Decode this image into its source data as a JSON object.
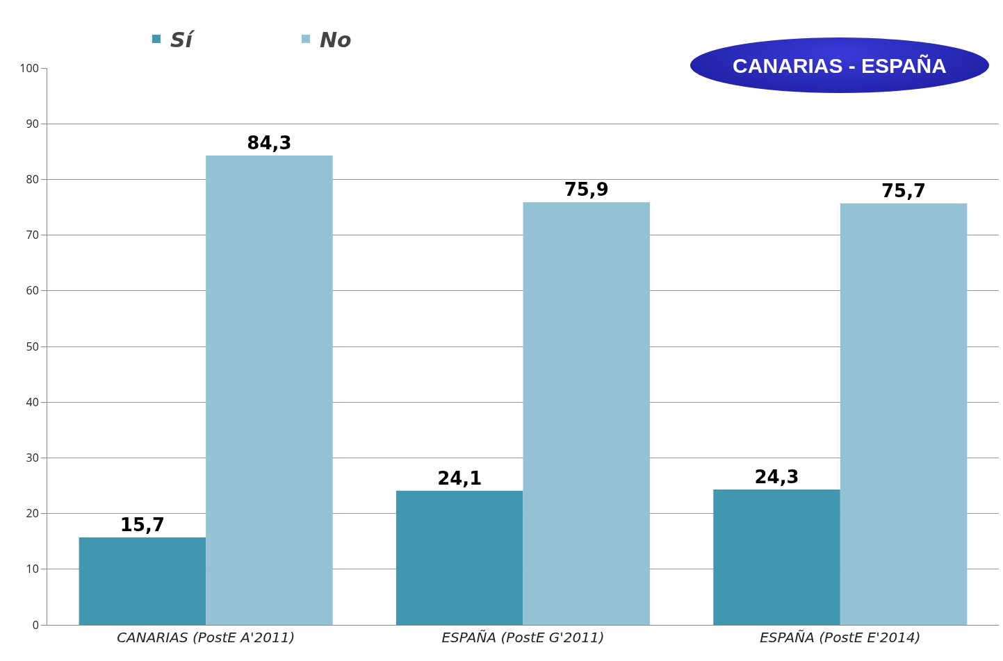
{
  "chart_data": {
    "type": "bar",
    "title": "CANARIAS - ESPAÑA",
    "categories": [
      "CANARIAS (PostE A'2011)",
      "ESPAÑA (PostE G'2011)",
      "ESPAÑA (PostE E'2014)"
    ],
    "series": [
      {
        "name": "Sí",
        "color": "#4297b0",
        "values": [
          15.7,
          24.1,
          24.3
        ],
        "value_labels": [
          "15,7",
          "24,1",
          "24,3"
        ]
      },
      {
        "name": "No",
        "color": "#92c2d4",
        "values": [
          84.3,
          75.9,
          75.7
        ],
        "value_labels": [
          "84,3",
          "75,9",
          "75,7"
        ]
      }
    ],
    "ylim": [
      0,
      100
    ],
    "yticks": [
      0,
      10,
      20,
      30,
      40,
      50,
      60,
      70,
      80,
      90,
      100
    ],
    "grid": "y",
    "legend": "top left"
  }
}
